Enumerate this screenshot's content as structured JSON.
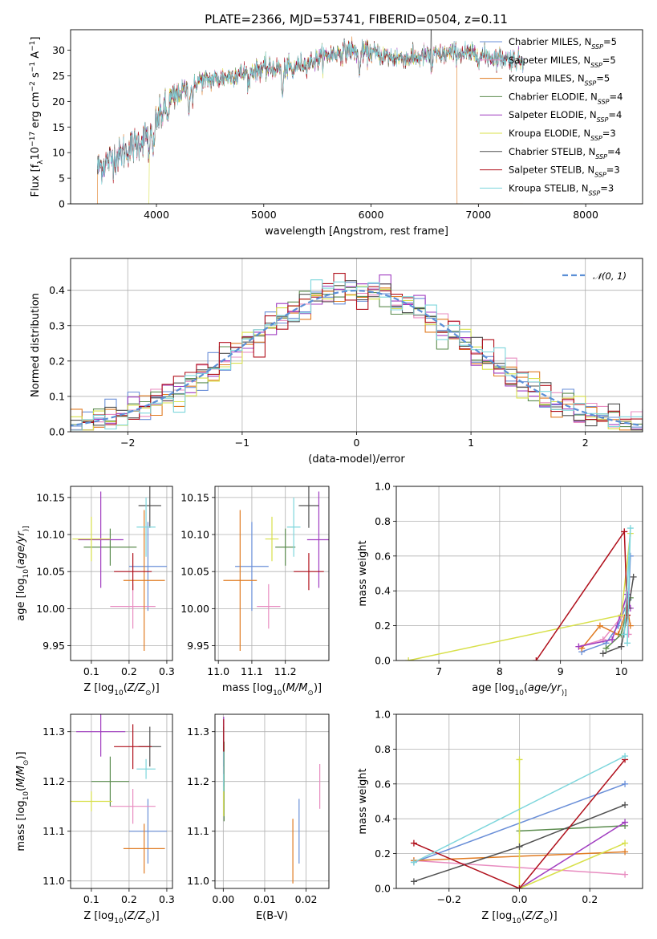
{
  "figure": {
    "title": "PLATE=2366, MJD=53741, FIBERID=0504, z=0.11"
  },
  "models": [
    {
      "name": "Chabrier MILES, N",
      "sub": "SSP",
      "suffix": "=5",
      "color": "#6a8fd8"
    },
    {
      "name": "Salpeter MILES, N",
      "sub": "SSP",
      "suffix": "=5",
      "color": "#e88cc0"
    },
    {
      "name": "Kroupa MILES, N",
      "sub": "SSP",
      "suffix": "=5",
      "color": "#e07b22"
    },
    {
      "name": "Chabrier ELODIE, N",
      "sub": "SSP",
      "suffix": "=4",
      "color": "#5b8c4e"
    },
    {
      "name": "Salpeter ELODIE, N",
      "sub": "SSP",
      "suffix": "=4",
      "color": "#a03cc0"
    },
    {
      "name": "Kroupa ELODIE, N",
      "sub": "SSP",
      "suffix": "=3",
      "color": "#d8e04a"
    },
    {
      "name": "Chabrier STELIB, N",
      "sub": "SSP",
      "suffix": "=4",
      "color": "#505050"
    },
    {
      "name": "Salpeter STELIB, N",
      "sub": "SSP",
      "suffix": "=3",
      "color": "#b0101c"
    },
    {
      "name": "Kroupa STELIB, N",
      "sub": "SSP",
      "suffix": "=3",
      "color": "#7dd6dc"
    }
  ],
  "chart_data": [
    {
      "id": "spectrum",
      "type": "line",
      "xlabel": "wavelength [Angstrom, rest frame]",
      "ylabel_parts": [
        "Flux [f",
        "λ",
        "10",
        "−17",
        " erg cm",
        "−2",
        " s",
        "−1",
        " A",
        "−1",
        "]"
      ],
      "xlim": [
        3200,
        8530
      ],
      "ylim": [
        0,
        34
      ],
      "xticks": [
        4000,
        5000,
        6000,
        7000,
        8000
      ],
      "yticks": [
        0,
        5,
        10,
        15,
        20,
        25,
        30
      ],
      "continuum": {
        "x": [
          3450,
          3600,
          3800,
          3950,
          4100,
          4250,
          4400,
          4600,
          4800,
          5000,
          5200,
          5400,
          5600,
          5800,
          6000,
          6200,
          6400,
          6600,
          6800,
          7000,
          7200,
          7400
        ],
        "y": [
          7.0,
          9.0,
          11.5,
          14.0,
          19.5,
          22.0,
          24.0,
          24.5,
          25.5,
          26.5,
          26.5,
          27.5,
          29.0,
          30.0,
          29.5,
          28.5,
          28.5,
          29.0,
          29.5,
          29.0,
          28.5,
          28.0
        ]
      },
      "features": [
        {
          "x": 3934,
          "depth": 5.0
        },
        {
          "x": 3969,
          "depth": 5.0
        },
        {
          "x": 4102,
          "depth": 3.0
        },
        {
          "x": 4305,
          "depth": 4.0
        },
        {
          "x": 4340,
          "depth": 3.0
        },
        {
          "x": 4861,
          "depth": 3.0
        },
        {
          "x": 5175,
          "depth": 6.0
        },
        {
          "x": 5270,
          "depth": 2.0
        },
        {
          "x": 5890,
          "depth": 5.0
        },
        {
          "x": 6563,
          "depth": 3.0
        }
      ],
      "spike": {
        "x": 6560,
        "y": 34.0
      },
      "drop_to_zero": [
        {
          "model": 2,
          "x_start": 3450
        },
        {
          "model": 5,
          "x_start": 3930
        },
        {
          "model": 7,
          "x_end": 7420
        },
        {
          "model": 2,
          "x_end": 6800
        }
      ]
    },
    {
      "id": "residuals",
      "type": "histogram",
      "xlabel": "(data-model)/error",
      "ylabel": "Normed distribution",
      "xlim": [
        -2.5,
        2.5
      ],
      "ylim": [
        0,
        0.49
      ],
      "xticks": [
        -2,
        -1,
        0,
        1,
        2
      ],
      "yticks": [
        0.0,
        0.1,
        0.2,
        0.3,
        0.4
      ],
      "bin_width": 0.1,
      "reference_curve": {
        "label": "𝒩(0, 1)",
        "color": "#5b8fd6",
        "mean": 0,
        "sigma": 1
      }
    },
    {
      "id": "age_vs_Z",
      "type": "errorbar",
      "xlabel_parts": [
        "Z [log",
        "10",
        "(",
        "Z/Z",
        "⊙",
        ")]"
      ],
      "ylabel_parts": [
        "age  [log",
        "10",
        "(",
        "age/yr",
        ")]"
      ],
      "xlim": [
        0.045,
        0.315
      ],
      "ylim": [
        9.93,
        10.165
      ],
      "xticks": [
        0.1,
        0.2,
        0.3
      ],
      "yticks": [
        9.95,
        10.0,
        10.05,
        10.1,
        10.15
      ],
      "points": [
        {
          "model": 0,
          "x": 0.25,
          "xerr": 0.05,
          "y": 10.057,
          "yerr": 0.06
        },
        {
          "model": 1,
          "x": 0.21,
          "xerr": 0.06,
          "y": 10.003,
          "yerr": 0.03
        },
        {
          "model": 2,
          "x": 0.24,
          "xerr": 0.055,
          "y": 10.038,
          "yerr": 0.095
        },
        {
          "model": 3,
          "x": 0.15,
          "xerr": 0.07,
          "y": 10.083,
          "yerr": 0.025
        },
        {
          "model": 4,
          "x": 0.125,
          "xerr": 0.06,
          "y": 10.093,
          "yerr": 0.065
        },
        {
          "model": 5,
          "x": 0.1,
          "xerr": 0.05,
          "y": 10.094,
          "yerr": 0.03
        },
        {
          "model": 6,
          "x": 0.255,
          "xerr": 0.03,
          "y": 10.139,
          "yerr": 0.03
        },
        {
          "model": 7,
          "x": 0.21,
          "xerr": 0.05,
          "y": 10.05,
          "yerr": 0.025
        },
        {
          "model": 8,
          "x": 0.245,
          "xerr": 0.025,
          "y": 10.11,
          "yerr": 0.04
        }
      ]
    },
    {
      "id": "age_vs_mass",
      "type": "errorbar",
      "xlabel_parts": [
        "mass [log",
        "10",
        "(",
        "M/M",
        "⊙",
        ")]"
      ],
      "xlim": [
        10.99,
        11.33
      ],
      "ylim": [
        9.93,
        10.165
      ],
      "xticks": [
        11.0,
        11.1,
        11.2
      ],
      "yticks": [
        9.95,
        10.0,
        10.05,
        10.1,
        10.15
      ],
      "points": [
        {
          "model": 0,
          "x": 11.1,
          "xerr": 0.05,
          "y": 10.057,
          "yerr": 0.06
        },
        {
          "model": 1,
          "x": 11.15,
          "xerr": 0.035,
          "y": 10.003,
          "yerr": 0.03
        },
        {
          "model": 2,
          "x": 11.065,
          "xerr": 0.05,
          "y": 10.038,
          "yerr": 0.095
        },
        {
          "model": 3,
          "x": 11.2,
          "xerr": 0.03,
          "y": 10.083,
          "yerr": 0.025
        },
        {
          "model": 4,
          "x": 11.3,
          "xerr": 0.035,
          "y": 10.093,
          "yerr": 0.065
        },
        {
          "model": 5,
          "x": 11.16,
          "xerr": 0.02,
          "y": 10.094,
          "yerr": 0.03
        },
        {
          "model": 6,
          "x": 11.27,
          "xerr": 0.03,
          "y": 10.139,
          "yerr": 0.03
        },
        {
          "model": 7,
          "x": 11.27,
          "xerr": 0.045,
          "y": 10.05,
          "yerr": 0.025
        },
        {
          "model": 8,
          "x": 11.225,
          "xerr": 0.02,
          "y": 10.11,
          "yerr": 0.04
        }
      ]
    },
    {
      "id": "mass_vs_Z",
      "type": "errorbar",
      "xlabel_parts": [
        "Z [log",
        "10",
        "(",
        "Z/Z",
        "⊙",
        ")]"
      ],
      "ylabel_parts": [
        "mass [log",
        "10",
        "(",
        "M/M",
        "⊙",
        ")]"
      ],
      "xlim": [
        0.045,
        0.315
      ],
      "ylim": [
        10.985,
        11.335
      ],
      "xticks": [
        0.1,
        0.2,
        0.3
      ],
      "yticks": [
        11.0,
        11.1,
        11.2,
        11.3
      ],
      "points": [
        {
          "model": 0,
          "x": 0.25,
          "xerr": 0.05,
          "y": 11.1,
          "yerr": 0.065
        },
        {
          "model": 1,
          "x": 0.21,
          "xerr": 0.06,
          "y": 11.15,
          "yerr": 0.035
        },
        {
          "model": 2,
          "x": 0.24,
          "xerr": 0.055,
          "y": 11.065,
          "yerr": 0.05
        },
        {
          "model": 3,
          "x": 0.15,
          "xerr": 0.05,
          "y": 11.2,
          "yerr": 0.05
        },
        {
          "model": 4,
          "x": 0.125,
          "xerr": 0.065,
          "y": 11.3,
          "yerr": 0.05
        },
        {
          "model": 5,
          "x": 0.1,
          "xerr": 0.055,
          "y": 11.16,
          "yerr": 0.02
        },
        {
          "model": 6,
          "x": 0.255,
          "xerr": 0.03,
          "y": 11.27,
          "yerr": 0.04
        },
        {
          "model": 7,
          "x": 0.21,
          "xerr": 0.05,
          "y": 11.27,
          "yerr": 0.045
        },
        {
          "model": 8,
          "x": 0.245,
          "xerr": 0.025,
          "y": 11.225,
          "yerr": 0.02
        }
      ]
    },
    {
      "id": "mass_vs_EBV",
      "type": "errorbar",
      "xlabel": "E(B-V)",
      "xlim": [
        -0.002,
        0.0255
      ],
      "ylim": [
        10.985,
        11.335
      ],
      "xticks": [
        0.0,
        0.01,
        0.02
      ],
      "yticks": [
        11.0,
        11.1,
        11.2,
        11.3
      ],
      "points": [
        {
          "model": 0,
          "x": 0.0183,
          "xerr": 0,
          "y": 11.1,
          "yerr": 0.065
        },
        {
          "model": 1,
          "x": 0.0233,
          "xerr": 0,
          "y": 11.19,
          "yerr": 0.045
        },
        {
          "model": 2,
          "x": 0.0168,
          "xerr": 0,
          "y": 11.06,
          "yerr": 0.065
        },
        {
          "model": 3,
          "x": 0.0002,
          "xerr": 0,
          "y": 11.2,
          "yerr": 0.08
        },
        {
          "model": 4,
          "x": 0.0001,
          "xerr": 0,
          "y": 11.28,
          "yerr": 0.05
        },
        {
          "model": 5,
          "x": 0.0001,
          "xerr": 0,
          "y": 11.16,
          "yerr": 0.03
        },
        {
          "model": 6,
          "x": 0.0001,
          "xerr": 0,
          "y": 11.27,
          "yerr": 0.04
        },
        {
          "model": 7,
          "x": 0.0001,
          "xerr": 0,
          "y": 11.27,
          "yerr": 0.055
        },
        {
          "model": 8,
          "x": 0.0001,
          "xerr": 0,
          "y": 11.22,
          "yerr": 0.04
        }
      ]
    },
    {
      "id": "weight_vs_age",
      "type": "line",
      "xlabel_parts": [
        "age  [log",
        "10",
        "(",
        "age/yr",
        ")]"
      ],
      "ylabel": "mass weight",
      "xlim": [
        6.3,
        10.35
      ],
      "ylim": [
        0,
        1.0
      ],
      "xticks": [
        7,
        8,
        9,
        10
      ],
      "yticks": [
        0.0,
        0.2,
        0.4,
        0.6,
        0.8,
        1.0
      ],
      "series": [
        {
          "model": 0,
          "x": [
            9.35,
            9.75,
            9.95,
            10.12,
            10.15
          ],
          "y": [
            0.05,
            0.1,
            0.2,
            0.35,
            0.6
          ]
        },
        {
          "model": 1,
          "x": [
            9.3,
            9.7,
            10.0,
            10.1,
            10.12
          ],
          "y": [
            0.08,
            0.12,
            0.25,
            0.4,
            0.15
          ]
        },
        {
          "model": 2,
          "x": [
            9.35,
            9.65,
            9.95,
            10.1,
            10.15
          ],
          "y": [
            0.07,
            0.2,
            0.15,
            0.3,
            0.2
          ]
        },
        {
          "model": 3,
          "x": [
            9.75,
            10.0,
            10.1,
            10.15
          ],
          "y": [
            0.07,
            0.15,
            0.3,
            0.36
          ]
        },
        {
          "model": 4,
          "x": [
            9.3,
            9.85,
            10.1,
            10.15
          ],
          "y": [
            0.08,
            0.12,
            0.38,
            0.3
          ]
        },
        {
          "model": 5,
          "x": [
            6.5,
            10.0,
            10.15
          ],
          "y": [
            0.0,
            0.26,
            0.73
          ]
        },
        {
          "model": 6,
          "x": [
            9.7,
            10.0,
            10.12,
            10.2
          ],
          "y": [
            0.04,
            0.08,
            0.3,
            0.48
          ]
        },
        {
          "model": 7,
          "x": [
            8.6,
            10.05,
            10.1
          ],
          "y": [
            0.0,
            0.74,
            0.26
          ]
        },
        {
          "model": 8,
          "x": [
            10.05,
            10.15,
            10.1
          ],
          "y": [
            0.15,
            0.76,
            0.1
          ]
        }
      ]
    },
    {
      "id": "weight_vs_Z",
      "type": "line",
      "xlabel_parts": [
        "Z [log",
        "10",
        "(",
        "Z/Z",
        "⊙",
        ")]"
      ],
      "ylabel": "mass weight",
      "xlim": [
        -0.35,
        0.35
      ],
      "ylim": [
        0,
        1.0
      ],
      "xticks": [
        -0.2,
        0.0,
        0.2
      ],
      "yticks": [
        0.0,
        0.2,
        0.4,
        0.6,
        0.8,
        1.0
      ],
      "series": [
        {
          "model": 0,
          "x": [
            -0.3,
            0.3
          ],
          "y": [
            0.15,
            0.6
          ]
        },
        {
          "model": 1,
          "x": [
            -0.3,
            0.3
          ],
          "y": [
            0.16,
            0.08
          ]
        },
        {
          "model": 2,
          "x": [
            -0.3,
            0.3
          ],
          "y": [
            0.16,
            0.21
          ]
        },
        {
          "model": 3,
          "x": [
            0.0,
            0.3
          ],
          "y": [
            0.33,
            0.36
          ]
        },
        {
          "model": 4,
          "x": [
            0.0,
            0.3
          ],
          "y": [
            0.0,
            0.38
          ]
        },
        {
          "model": 5,
          "x": [
            0.0,
            0.0,
            0.3
          ],
          "y": [
            0.74,
            0.0,
            0.26
          ]
        },
        {
          "model": 6,
          "x": [
            -0.3,
            0.0,
            0.3
          ],
          "y": [
            0.04,
            0.24,
            0.48
          ]
        },
        {
          "model": 7,
          "x": [
            -0.3,
            0.0,
            0.3
          ],
          "y": [
            0.26,
            0.0,
            0.74
          ]
        },
        {
          "model": 8,
          "x": [
            -0.3,
            0.3
          ],
          "y": [
            0.15,
            0.76
          ]
        }
      ]
    }
  ]
}
